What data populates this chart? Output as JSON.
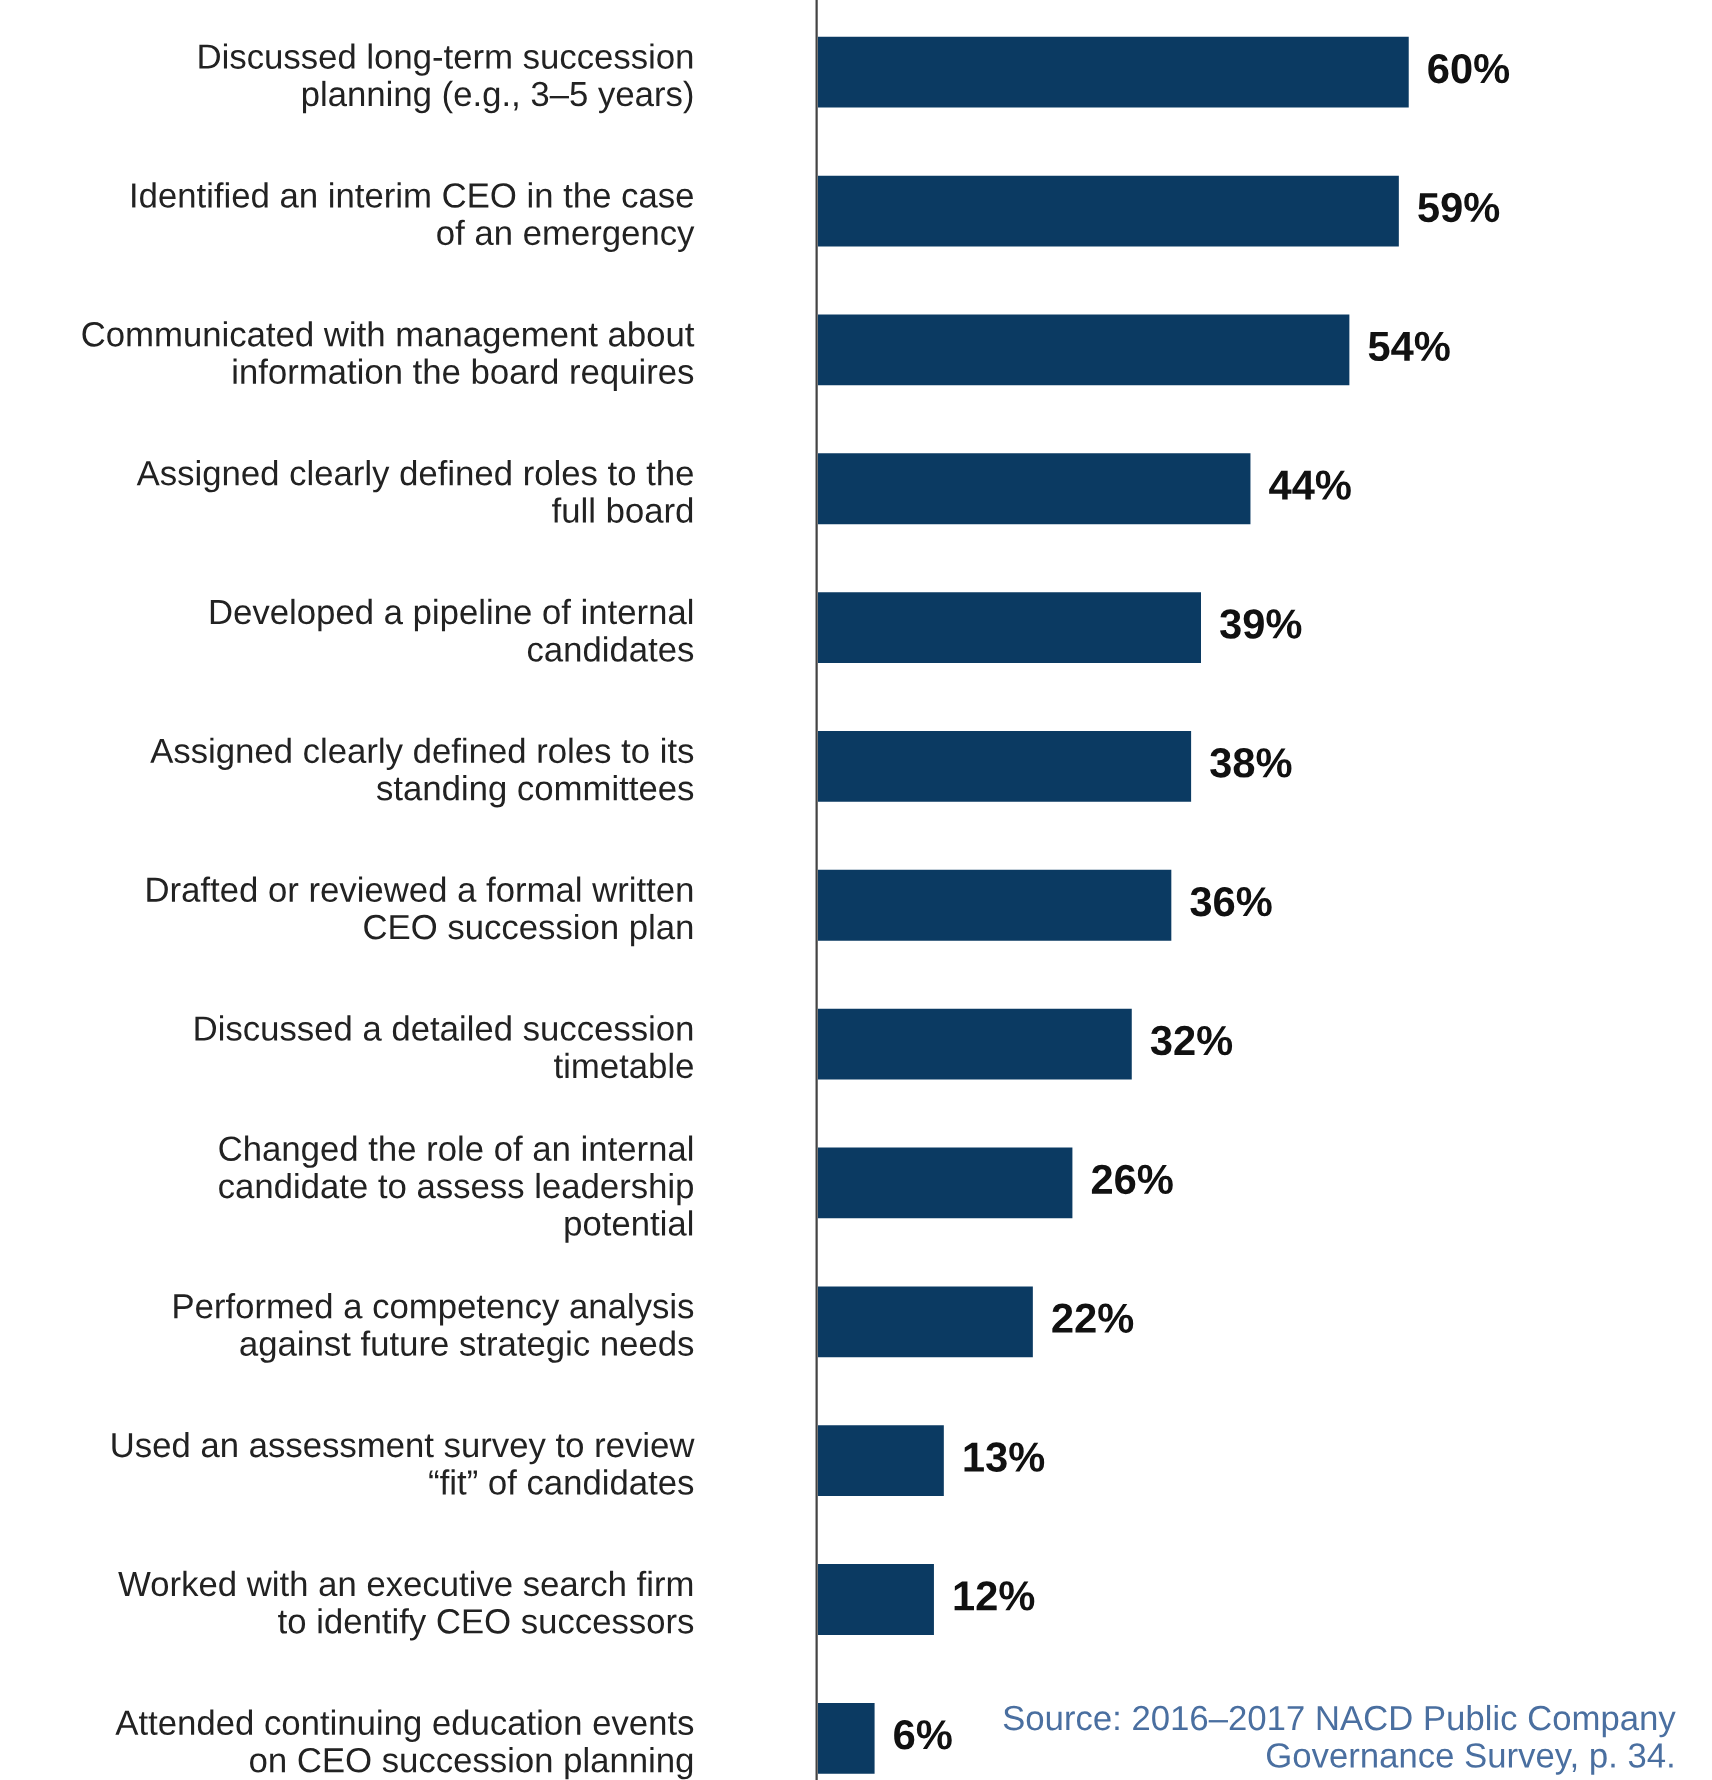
{
  "chart_data": {
    "type": "bar",
    "orientation": "horizontal",
    "categories": [
      "Discussed long-term succession planning (e.g., 3–5 years)",
      "Identified an interim CEO in the case of an emergency",
      "Communicated with management about information the board requires",
      "Assigned clearly defined roles to the full board",
      "Developed a pipeline of internal candidates",
      "Assigned clearly defined roles to its standing committees",
      "Drafted or reviewed a formal written CEO succession plan",
      "Discussed a detailed succession timetable",
      "Changed the role of an internal candidate to assess leadership potential",
      "Performed a competency analysis against future strategic needs",
      "Used an assessment survey to review “fit” of candidates",
      "Worked with an executive search firm to identify CEO successors",
      "Attended continuing education events on CEO succession planning"
    ],
    "values": [
      60,
      59,
      54,
      44,
      39,
      38,
      36,
      32,
      26,
      22,
      13,
      12,
      6
    ],
    "value_labels": [
      "60%",
      "59%",
      "54%",
      "44%",
      "39%",
      "38%",
      "36%",
      "32%",
      "26%",
      "22%",
      "13%",
      "12%",
      "6%"
    ],
    "color": "#0b3a62",
    "tick_labels": "y",
    "grid": false,
    "legend": false,
    "annotations": [
      "Source: 2016–2017 NACD Public Company Governance Survey, p. 34."
    ]
  }
}
